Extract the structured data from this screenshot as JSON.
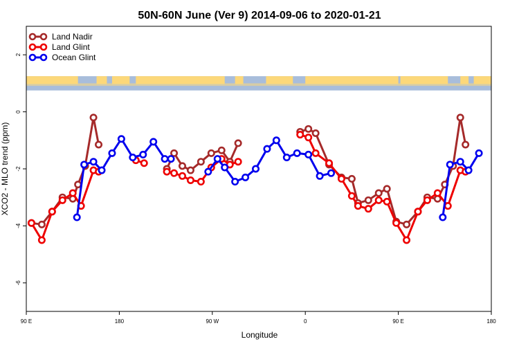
{
  "chart_data": {
    "type": "line",
    "title": "50N-60N June (Ver 9)   2014-09-06 to 2020-01-21",
    "xlabel": "Longitude",
    "ylabel": "XCO2 - MLO trend (ppm)",
    "x_axis": {
      "min": 90,
      "max": 540,
      "ticks": [
        {
          "value": 90,
          "label": "90 E"
        },
        {
          "value": 180,
          "label": "180"
        },
        {
          "value": 270,
          "label": "90 W"
        },
        {
          "value": 360,
          "label": "0"
        },
        {
          "value": 450,
          "label": "90 E"
        },
        {
          "value": 540,
          "label": "180"
        }
      ]
    },
    "y_axis": {
      "min": -7,
      "max": 3,
      "ticks": [
        {
          "value": 2,
          "label": "2"
        },
        {
          "value": 0,
          "label": "0"
        },
        {
          "value": -2,
          "label": "-2"
        },
        {
          "value": -4,
          "label": "-4"
        },
        {
          "value": -6,
          "label": "-6"
        }
      ]
    },
    "grid": false,
    "legend_position": "top-left",
    "map_band": {
      "ymin": 0.75,
      "ymax": 1.25,
      "ocean_color": "#a8bddb",
      "land_color": "#fcd87a"
    },
    "series": [
      {
        "name": "Land Nadir",
        "color": "#a52a2a",
        "segments": [
          [
            [
              95,
              -3.9
            ],
            [
              105,
              -3.95
            ],
            [
              115,
              -3.5
            ],
            [
              125,
              -3.0
            ],
            [
              135,
              -3.05
            ],
            [
              140,
              -2.55
            ],
            [
              147,
              -1.9
            ],
            [
              155,
              -0.2
            ],
            [
              160,
              -1.15
            ]
          ],
          [
            [
              226,
              -2.0
            ],
            [
              233,
              -1.45
            ],
            [
              241,
              -1.9
            ],
            [
              249,
              -2.05
            ],
            [
              259,
              -1.75
            ],
            [
              269,
              -1.45
            ],
            [
              279,
              -1.35
            ],
            [
              287,
              -1.75
            ],
            [
              295,
              -1.1
            ]
          ],
          [
            [
              355,
              -0.7
            ],
            [
              363,
              -0.6
            ],
            [
              370,
              -0.75
            ],
            [
              383,
              -1.85
            ],
            [
              395,
              -2.3
            ],
            [
              405,
              -2.35
            ],
            [
              411,
              -3.2
            ],
            [
              421,
              -3.1
            ],
            [
              431,
              -2.85
            ],
            [
              439,
              -2.7
            ],
            [
              448,
              -3.85
            ],
            [
              458,
              -3.95
            ],
            [
              469,
              -3.5
            ],
            [
              478,
              -3.0
            ],
            [
              488,
              -3.05
            ],
            [
              495,
              -2.55
            ],
            [
              503,
              -1.9
            ],
            [
              510,
              -0.2
            ],
            [
              515,
              -1.15
            ]
          ]
        ]
      },
      {
        "name": "Land Glint",
        "color": "#ee0000",
        "segments": [
          [
            [
              95,
              -3.9
            ],
            [
              105,
              -4.5
            ],
            [
              115,
              -3.5
            ],
            [
              125,
              -3.1
            ],
            [
              135,
              -2.85
            ],
            [
              143,
              -3.3
            ],
            [
              155,
              -2.05
            ],
            [
              160,
              -2.1
            ]
          ],
          [
            [
              196,
              -1.7
            ],
            [
              204,
              -1.8
            ]
          ],
          [
            [
              226,
              -2.1
            ],
            [
              233,
              -2.15
            ],
            [
              241,
              -2.25
            ],
            [
              249,
              -2.4
            ],
            [
              259,
              -2.45
            ],
            [
              269,
              -1.95
            ],
            [
              279,
              -1.65
            ],
            [
              287,
              -1.85
            ],
            [
              295,
              -1.75
            ]
          ],
          [
            [
              355,
              -0.8
            ],
            [
              363,
              -0.9
            ],
            [
              370,
              -1.45
            ],
            [
              383,
              -1.8
            ],
            [
              395,
              -2.35
            ],
            [
              405,
              -2.95
            ],
            [
              411,
              -3.3
            ],
            [
              421,
              -3.4
            ],
            [
              431,
              -3.1
            ],
            [
              439,
              -3.15
            ],
            [
              448,
              -3.9
            ],
            [
              458,
              -4.5
            ],
            [
              469,
              -3.5
            ],
            [
              478,
              -3.1
            ],
            [
              488,
              -2.85
            ],
            [
              498,
              -3.3
            ],
            [
              510,
              -2.05
            ],
            [
              515,
              -2.1
            ]
          ]
        ]
      },
      {
        "name": "Ocean Glint",
        "color": "#0000ee",
        "segments": [
          [
            [
              139,
              -3.7
            ],
            [
              146,
              -1.85
            ],
            [
              155,
              -1.75
            ],
            [
              163,
              -2.05
            ],
            [
              173,
              -1.45
            ],
            [
              182,
              -0.95
            ],
            [
              193,
              -1.6
            ],
            [
              203,
              -1.5
            ],
            [
              213,
              -1.05
            ],
            [
              224,
              -1.65
            ],
            [
              230,
              -1.65
            ]
          ],
          [
            [
              266,
              -2.1
            ],
            [
              275,
              -1.65
            ],
            [
              282,
              -1.95
            ],
            [
              292,
              -2.45
            ],
            [
              302,
              -2.3
            ],
            [
              312,
              -2.0
            ],
            [
              323,
              -1.3
            ],
            [
              332,
              -1.0
            ],
            [
              342,
              -1.6
            ],
            [
              352,
              -1.45
            ],
            [
              363,
              -1.5
            ],
            [
              374,
              -2.25
            ],
            [
              385,
              -2.15
            ]
          ],
          [
            [
              493,
              -3.7
            ],
            [
              500,
              -1.85
            ],
            [
              510,
              -1.75
            ],
            [
              518,
              -2.05
            ],
            [
              528,
              -1.45
            ]
          ]
        ]
      }
    ]
  }
}
